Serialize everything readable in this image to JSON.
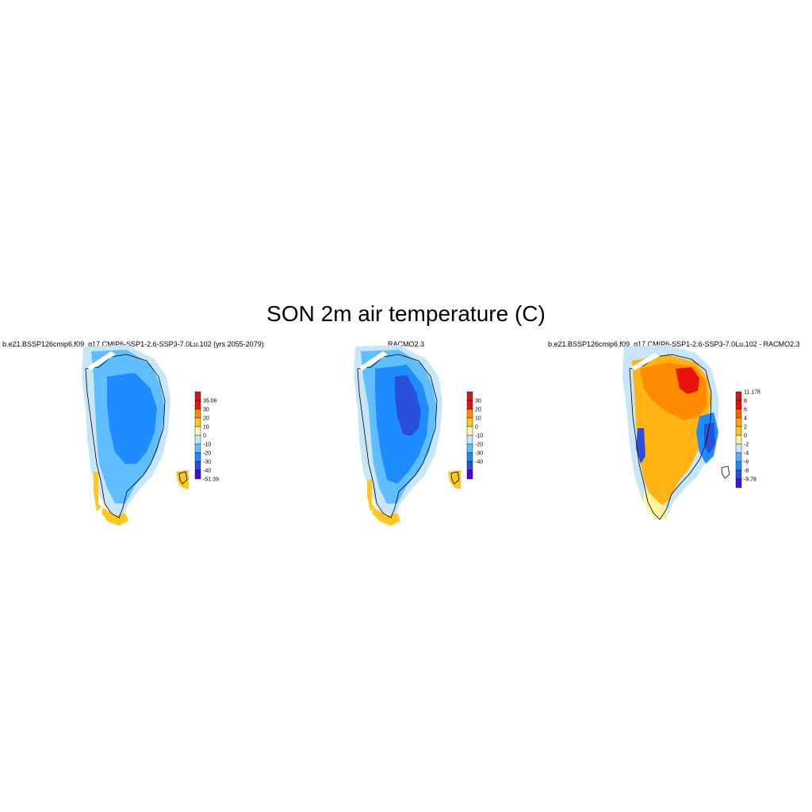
{
  "title": "SON 2m air temperature (C)",
  "panels": [
    {
      "id": "model",
      "title": "b.e21.BSSP126cmip6.f09_g17.CMIP6-SSP1-2.6-SSP3-7.0Lu.102 (yrs 2055-2079)",
      "colorbar": {
        "labels": [
          "35.06",
          "30",
          "20",
          "10",
          "0",
          "-10",
          "-20",
          "-30",
          "-40",
          "-51.39"
        ],
        "colors": [
          "#c81e1e",
          "#e8120a",
          "#ff8c00",
          "#ffc81e",
          "#fffab4",
          "#c8e6fa",
          "#5fbeff",
          "#1e8cff",
          "#2850dc",
          "#5000e6"
        ]
      }
    },
    {
      "id": "obs",
      "title": "RACMO2.3",
      "colorbar": {
        "labels": [
          "30",
          "20",
          "10",
          "0",
          "-10",
          "-20",
          "-30",
          "-40"
        ],
        "colors": [
          "#c81e1e",
          "#e8120a",
          "#ff8c00",
          "#ffc81e",
          "#fffab4",
          "#c8e6fa",
          "#5fbeff",
          "#1e8cff",
          "#2850dc",
          "#5000e6"
        ]
      }
    },
    {
      "id": "diff",
      "title": "b.e21.BSSP126cmip6.f09_g17.CMIP6-SSP1-2.6-SSP3-7.0Lu.102 - RACMO2.3",
      "colorbar": {
        "labels": [
          "11.178",
          "8",
          "6",
          "4",
          "2",
          "0",
          "-2",
          "-4",
          "-6",
          "-8",
          "-9.78"
        ],
        "colors": [
          "#c81e1e",
          "#e8120a",
          "#ff6400",
          "#ffa000",
          "#ffc81e",
          "#fff5a0",
          "#c8e6fa",
          "#50b4ff",
          "#1e8cff",
          "#2850dc",
          "#3c14e6"
        ]
      }
    }
  ],
  "colors": {
    "coast": "#000000",
    "border_ice": "#c8e6fa",
    "warm_coast": "#ffc81e",
    "cold_interior_model": "#1e8cff",
    "cold_interior_obs": "#2850dc",
    "diff_main": "#ffb414",
    "diff_warm": "#ff8c00",
    "diff_hot": "#e8120a"
  }
}
